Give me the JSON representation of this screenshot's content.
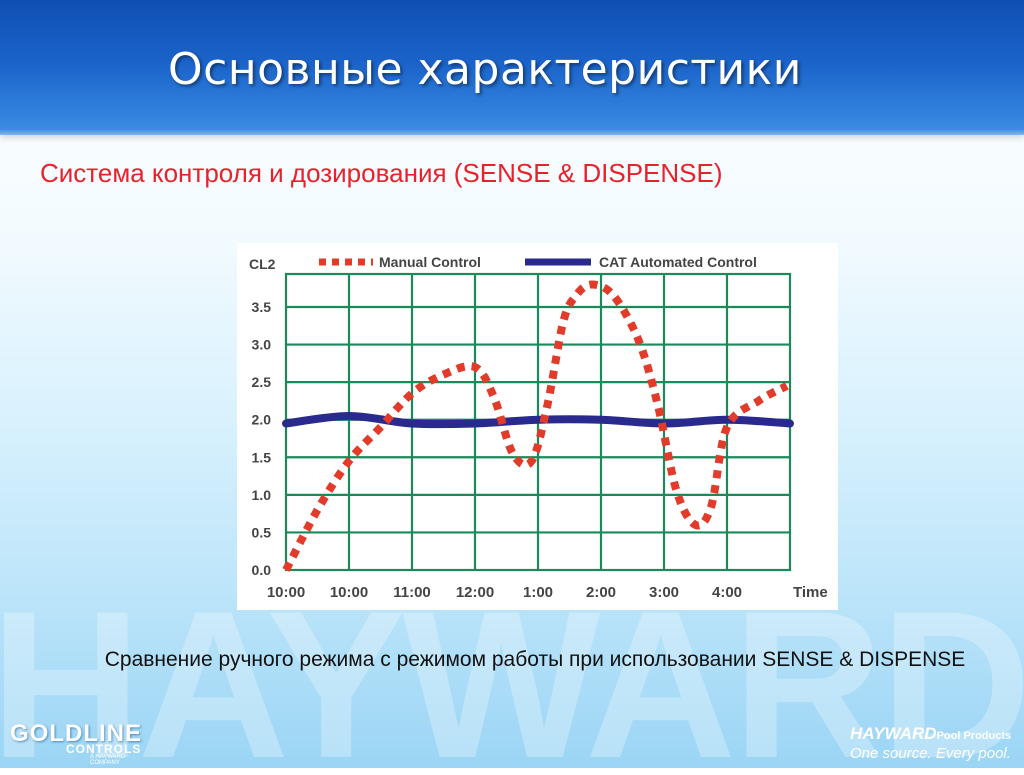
{
  "slide": {
    "title": "Основные характеристики",
    "subtitle": "Система контроля и дозирования (SENSE & DISPENSE)",
    "caption": "Сравнение ручного режима с режимом работы при использовании SENSE & DISPENSE",
    "background_word": "HAYWARD"
  },
  "logos": {
    "left_main": "GOLDLINE",
    "left_sub": "CONTROLS",
    "left_tiny": "A HAYWARD COMPANY",
    "right_main": "HAYWARD",
    "right_suffix": "Pool Products",
    "right_tagline": "One source. Every pool."
  },
  "colors": {
    "title_band": "#1a62c9",
    "subtitle": "#e8222b",
    "manual": "#e23b2a",
    "automated": "#2a2a8e",
    "grid": "#1b8a5a",
    "tick_text": "#444444"
  },
  "chart_data": {
    "type": "line",
    "ylabel": "CL2",
    "xlabel": "Time",
    "ylim": [
      0,
      3.5
    ],
    "yticks": [
      "0.0",
      "0.5",
      "1.0",
      "1.5",
      "2.0",
      "2.5",
      "3.0",
      "3.5"
    ],
    "categories": [
      "10:00",
      "10:00",
      "11:00",
      "12:00",
      "1:00",
      "2:00",
      "3:00",
      "4:00"
    ],
    "grid": true,
    "legend_position": "top",
    "series": [
      {
        "name": "Manual Control",
        "style": "dotted",
        "points": [
          [
            0,
            0.0
          ],
          [
            0.5,
            0.8
          ],
          [
            1,
            1.45
          ],
          [
            1.5,
            1.9
          ],
          [
            2,
            2.35
          ],
          [
            2.5,
            2.6
          ],
          [
            3,
            2.7
          ],
          [
            3.3,
            2.3
          ],
          [
            3.6,
            1.55
          ],
          [
            3.9,
            1.45
          ],
          [
            4.15,
            2.2
          ],
          [
            4.4,
            3.3
          ],
          [
            4.6,
            3.65
          ],
          [
            4.85,
            3.8
          ],
          [
            5.2,
            3.65
          ],
          [
            5.6,
            3.05
          ],
          [
            5.9,
            2.2
          ],
          [
            6.2,
            1.05
          ],
          [
            6.5,
            0.6
          ],
          [
            6.75,
            0.85
          ],
          [
            7.0,
            1.9
          ],
          [
            7.5,
            2.25
          ],
          [
            7.95,
            2.45
          ]
        ]
      },
      {
        "name": "CAT Automated Control",
        "style": "solid",
        "points": [
          [
            0,
            1.95
          ],
          [
            1,
            2.05
          ],
          [
            2,
            1.95
          ],
          [
            3,
            1.95
          ],
          [
            4,
            2.0
          ],
          [
            5,
            2.0
          ],
          [
            6,
            1.95
          ],
          [
            7,
            2.0
          ],
          [
            8,
            1.95
          ]
        ]
      }
    ]
  }
}
